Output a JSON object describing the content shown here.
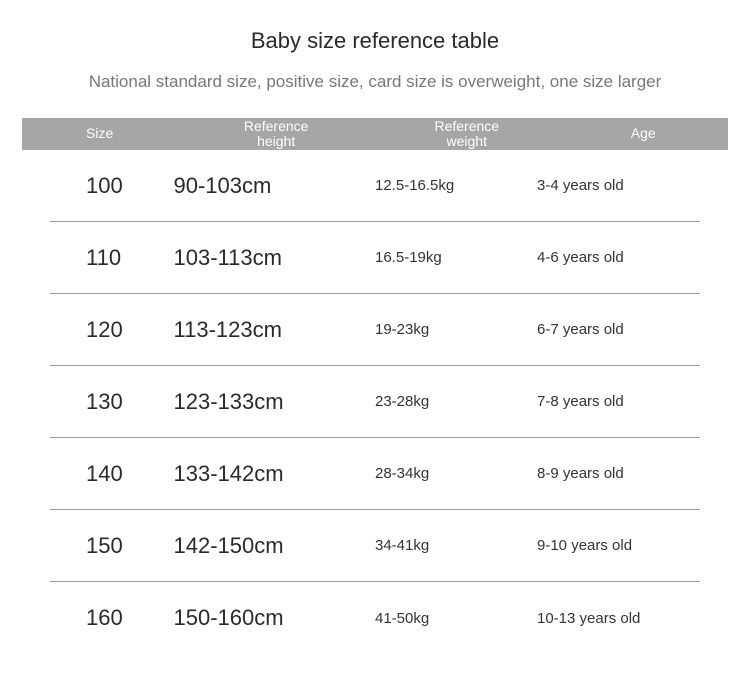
{
  "title": "Baby size reference table",
  "subtitle": "National standard size, positive size, card size is overweight, one size larger",
  "table": {
    "type": "table",
    "header_bg": "#a6a6a6",
    "header_fg": "#ffffff",
    "row_border_color": "#9a9a9a",
    "columns": {
      "size": {
        "label": "Size"
      },
      "height": {
        "label1": "Reference",
        "label2": "height"
      },
      "weight": {
        "label1": "Reference",
        "label2": "weight"
      },
      "age": {
        "label": "Age"
      }
    },
    "rows": [
      {
        "size": "100",
        "height": "90-103cm",
        "weight": "12.5-16.5kg",
        "age": "3-4 years old"
      },
      {
        "size": "110",
        "height": "103-113cm",
        "weight": "16.5-19kg",
        "age": "4-6 years old"
      },
      {
        "size": "120",
        "height": "113-123cm",
        "weight": "19-23kg",
        "age": "6-7 years old"
      },
      {
        "size": "130",
        "height": "123-133cm",
        "weight": "23-28kg",
        "age": "7-8 years old"
      },
      {
        "size": "140",
        "height": "133-142cm",
        "weight": "28-34kg",
        "age": "8-9 years old"
      },
      {
        "size": "150",
        "height": "142-150cm",
        "weight": "34-41kg",
        "age": "9-10 years old"
      },
      {
        "size": "160",
        "height": "150-160cm",
        "weight": "41-50kg",
        "age": "10-13 years old"
      }
    ]
  }
}
